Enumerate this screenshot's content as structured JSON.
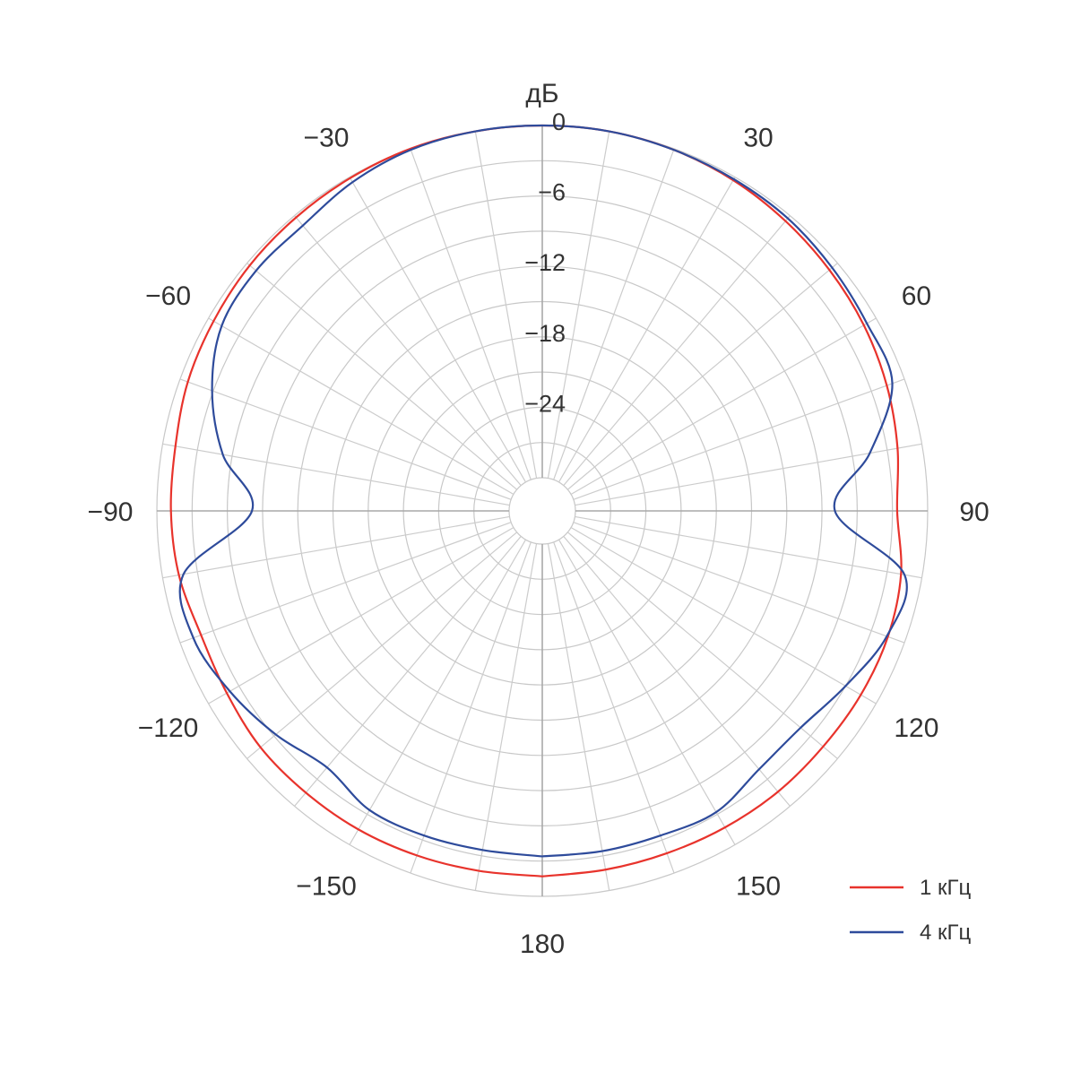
{
  "chart_data": {
    "type": "polar-line",
    "title": "",
    "radial_unit": "дБ",
    "radial_range": [
      -30,
      0
    ],
    "radial_ticks": [
      0,
      -6,
      -12,
      -18,
      -24
    ],
    "radial_ticks_labels": [
      "0",
      "−6",
      "−12",
      "−18",
      "−24"
    ],
    "angle_ticks": [
      0,
      30,
      60,
      90,
      120,
      150,
      180,
      -150,
      -120,
      -90,
      -60,
      -30
    ],
    "angle_ticks_labels": [
      "",
      "30",
      "60",
      "90",
      "120",
      "150",
      "180",
      "−150",
      "−120",
      "−90",
      "−60",
      "−30"
    ],
    "grid": true,
    "legend": "bottom-right",
    "series": [
      {
        "name": "1 кГц",
        "color": "#e8332c",
        "angles": [
          -180,
          -170,
          -160,
          -150,
          -140,
          -130,
          -120,
          -110,
          -100,
          -90,
          -80,
          -70,
          -60,
          -50,
          -40,
          -30,
          -20,
          -10,
          0,
          10,
          20,
          30,
          40,
          50,
          60,
          70,
          80,
          90,
          100,
          110,
          120,
          130,
          140,
          150,
          160,
          170,
          180
        ],
        "values": [
          -1.7,
          -1.7,
          -1.6,
          -1.5,
          -1.5,
          -1.5,
          -1.8,
          -1.9,
          -1.4,
          -1.2,
          -1.1,
          -0.7,
          -0.5,
          -0.3,
          -0.2,
          -0.1,
          0,
          0,
          0,
          0,
          -0.1,
          -0.3,
          -0.6,
          -0.9,
          -1.2,
          -1.6,
          -2.1,
          -2.6,
          -1.8,
          -1.5,
          -1.5,
          -1.6,
          -1.6,
          -1.7,
          -1.8,
          -1.8,
          -1.7
        ]
      },
      {
        "name": "4 кГц",
        "color": "#2e4b9b",
        "angles": [
          -180,
          -170,
          -160,
          -150,
          -140,
          -130,
          -120,
          -110,
          -100,
          -90,
          -80,
          -70,
          -60,
          -50,
          -40,
          -30,
          -20,
          -10,
          0,
          10,
          20,
          30,
          40,
          50,
          60,
          70,
          80,
          90,
          100,
          110,
          120,
          130,
          140,
          150,
          160,
          170,
          180
        ],
        "values": [
          -3.4,
          -3.5,
          -3.4,
          -3.4,
          -4.3,
          -3.2,
          -2.1,
          -1.2,
          -1.8,
          -8.1,
          -5.2,
          -2.9,
          -1.3,
          -1.0,
          -1.1,
          -0.5,
          -0.1,
          0,
          0,
          0,
          -0.1,
          -0.2,
          -0.3,
          -0.6,
          -0.9,
          -1.1,
          -4.5,
          -7.9,
          -1.5,
          -1.6,
          -3.0,
          -4.1,
          -4.1,
          -3.2,
          -3.4,
          -3.4,
          -3.4
        ]
      }
    ]
  }
}
